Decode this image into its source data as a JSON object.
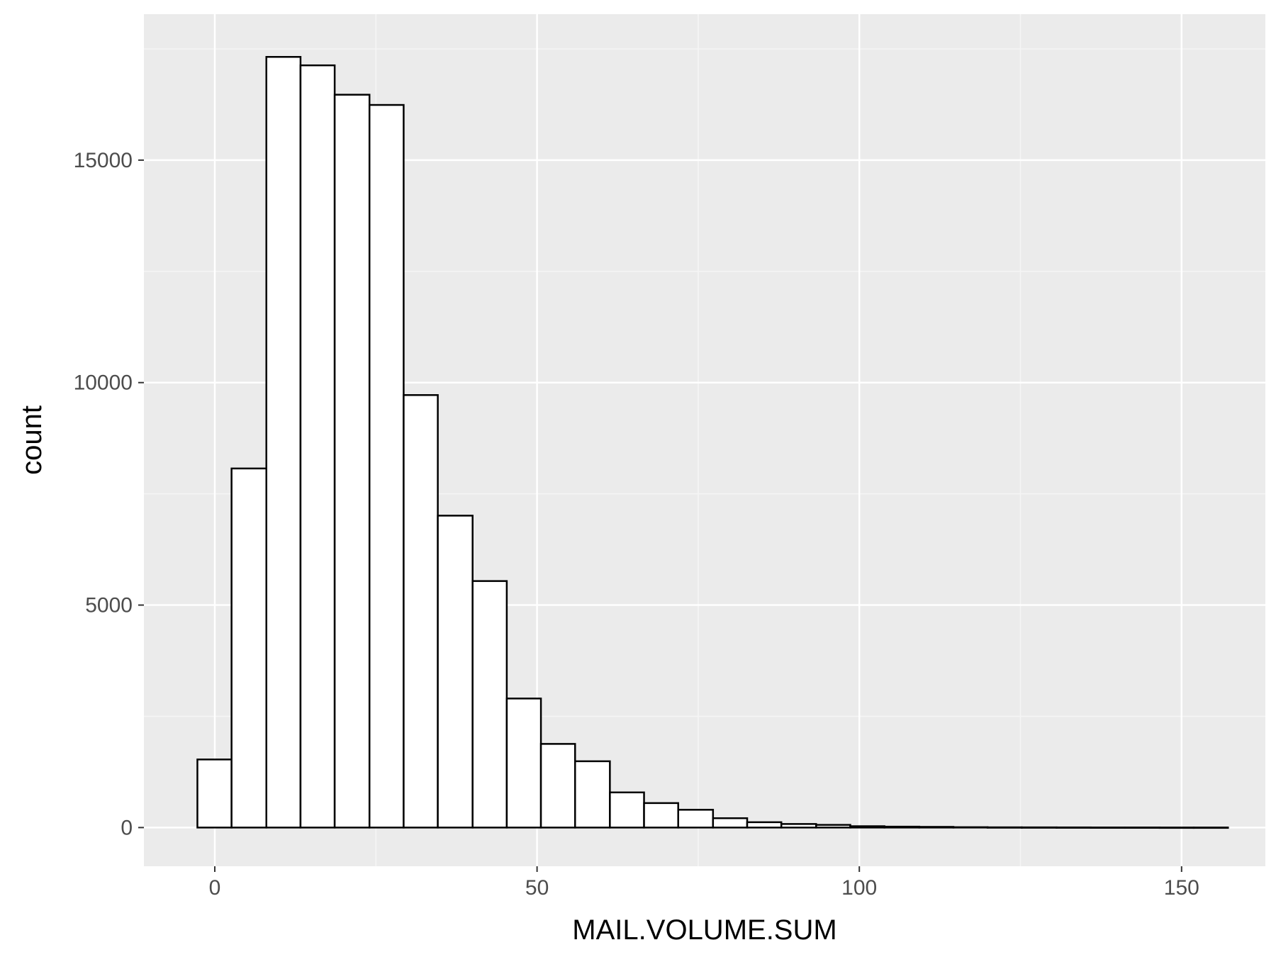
{
  "chart_data": {
    "type": "bar",
    "xlabel": "MAIL.VOLUME.SUM",
    "ylabel": "count",
    "xlim": [
      -11,
      163
    ],
    "ylim": [
      -870,
      18280
    ],
    "x_ticks": [
      0,
      50,
      100,
      150
    ],
    "y_ticks": [
      0,
      5000,
      10000,
      15000
    ],
    "grid": true,
    "bin_width": 5.33,
    "bins": [
      {
        "start": -2.7,
        "end": 2.6,
        "count": 1530
      },
      {
        "start": 2.6,
        "end": 8.0,
        "count": 8070
      },
      {
        "start": 8.0,
        "end": 13.3,
        "count": 17320
      },
      {
        "start": 13.3,
        "end": 18.6,
        "count": 17130
      },
      {
        "start": 18.6,
        "end": 24.0,
        "count": 16470
      },
      {
        "start": 24.0,
        "end": 29.3,
        "count": 16240
      },
      {
        "start": 29.3,
        "end": 34.6,
        "count": 9720
      },
      {
        "start": 34.6,
        "end": 40.0,
        "count": 7010
      },
      {
        "start": 40.0,
        "end": 45.3,
        "count": 5540
      },
      {
        "start": 45.3,
        "end": 50.6,
        "count": 2900
      },
      {
        "start": 50.6,
        "end": 55.9,
        "count": 1880
      },
      {
        "start": 55.9,
        "end": 61.3,
        "count": 1490
      },
      {
        "start": 61.3,
        "end": 66.6,
        "count": 790
      },
      {
        "start": 66.6,
        "end": 71.9,
        "count": 550
      },
      {
        "start": 71.9,
        "end": 77.3,
        "count": 400
      },
      {
        "start": 77.3,
        "end": 82.6,
        "count": 210
      },
      {
        "start": 82.6,
        "end": 87.9,
        "count": 120
      },
      {
        "start": 87.9,
        "end": 93.3,
        "count": 80
      },
      {
        "start": 93.3,
        "end": 98.6,
        "count": 60
      },
      {
        "start": 98.6,
        "end": 103.9,
        "count": 30
      },
      {
        "start": 103.9,
        "end": 109.3,
        "count": 20
      },
      {
        "start": 109.3,
        "end": 114.6,
        "count": 15
      },
      {
        "start": 114.6,
        "end": 119.9,
        "count": 8
      },
      {
        "start": 119.9,
        "end": 125.2,
        "count": 5
      },
      {
        "start": 125.2,
        "end": 130.6,
        "count": 4
      },
      {
        "start": 130.6,
        "end": 135.9,
        "count": 3
      },
      {
        "start": 135.9,
        "end": 141.2,
        "count": 2
      },
      {
        "start": 141.2,
        "end": 146.6,
        "count": 2
      },
      {
        "start": 146.6,
        "end": 151.9,
        "count": 1
      },
      {
        "start": 151.9,
        "end": 157.2,
        "count": 1
      }
    ],
    "colors": {
      "panel_background": "#ebebeb",
      "grid_major": "#ffffff",
      "grid_minor": "#f5f5f5",
      "bar_fill": "#ffffff",
      "bar_stroke": "#000000",
      "tick_text": "#4d4d4d",
      "tick_mark": "#333333"
    }
  }
}
